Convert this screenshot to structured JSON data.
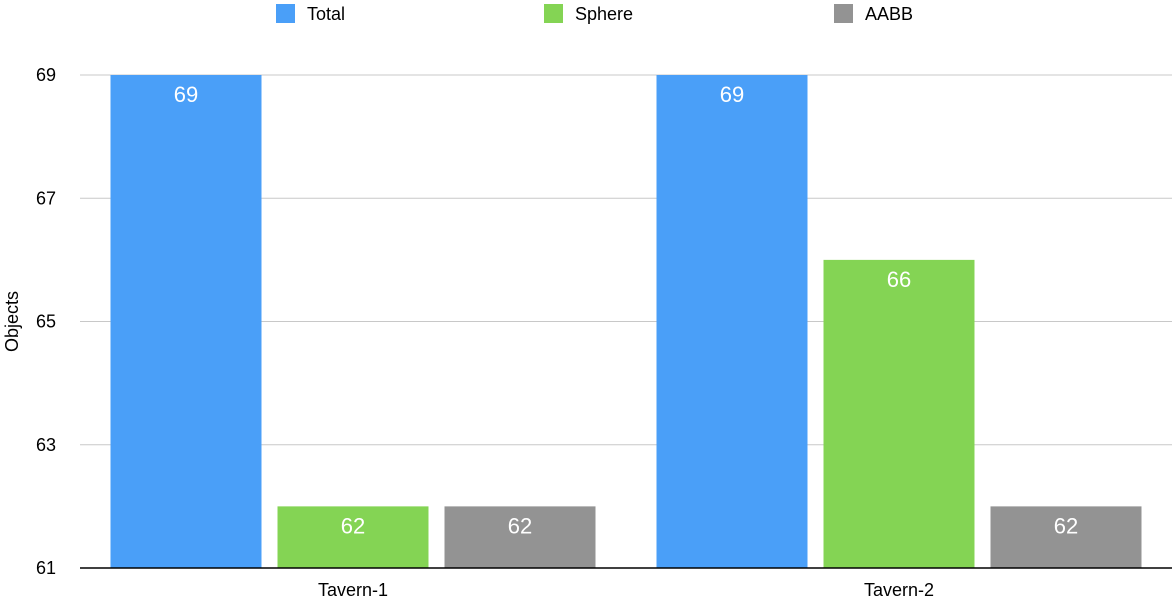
{
  "chart_data": {
    "type": "bar",
    "categories": [
      "Tavern-1",
      "Tavern-2"
    ],
    "series": [
      {
        "name": "Total",
        "values": [
          69,
          69
        ],
        "color": "#4a9ff8"
      },
      {
        "name": "Sphere",
        "values": [
          62,
          66
        ],
        "color": "#84d454"
      },
      {
        "name": "AABB",
        "values": [
          62,
          62
        ],
        "color": "#939393"
      }
    ],
    "ylabel": "Objects",
    "xlabel": "",
    "ylim": [
      61,
      69
    ],
    "yticks": [
      61,
      63,
      65,
      67,
      69
    ],
    "grid": true,
    "legend_position": "top"
  }
}
